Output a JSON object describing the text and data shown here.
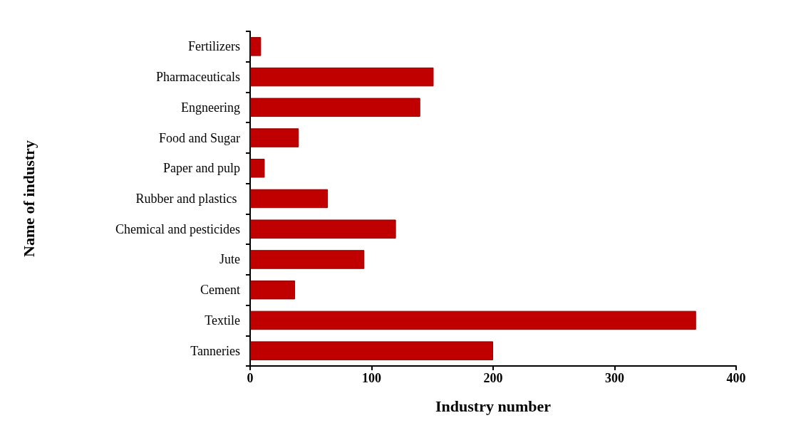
{
  "chart_data": {
    "type": "bar",
    "orientation": "horizontal",
    "xlabel": "Industry number",
    "ylabel": "Name of industry",
    "categories": [
      "Fertilizers",
      "Pharmaceuticals",
      "Engneering",
      "Food and Sugar",
      "Paper and pulp",
      "Rubber and plastics ",
      "Chemical and pesticides",
      "Jute",
      "Cement",
      "Textile",
      "Tanneries"
    ],
    "values": [
      9,
      151,
      140,
      40,
      12,
      64,
      120,
      94,
      37,
      367,
      200
    ],
    "color": "#c00000",
    "xlim": [
      0,
      400
    ],
    "xticks": [
      0,
      100,
      200,
      300,
      400
    ],
    "grid": false
  }
}
